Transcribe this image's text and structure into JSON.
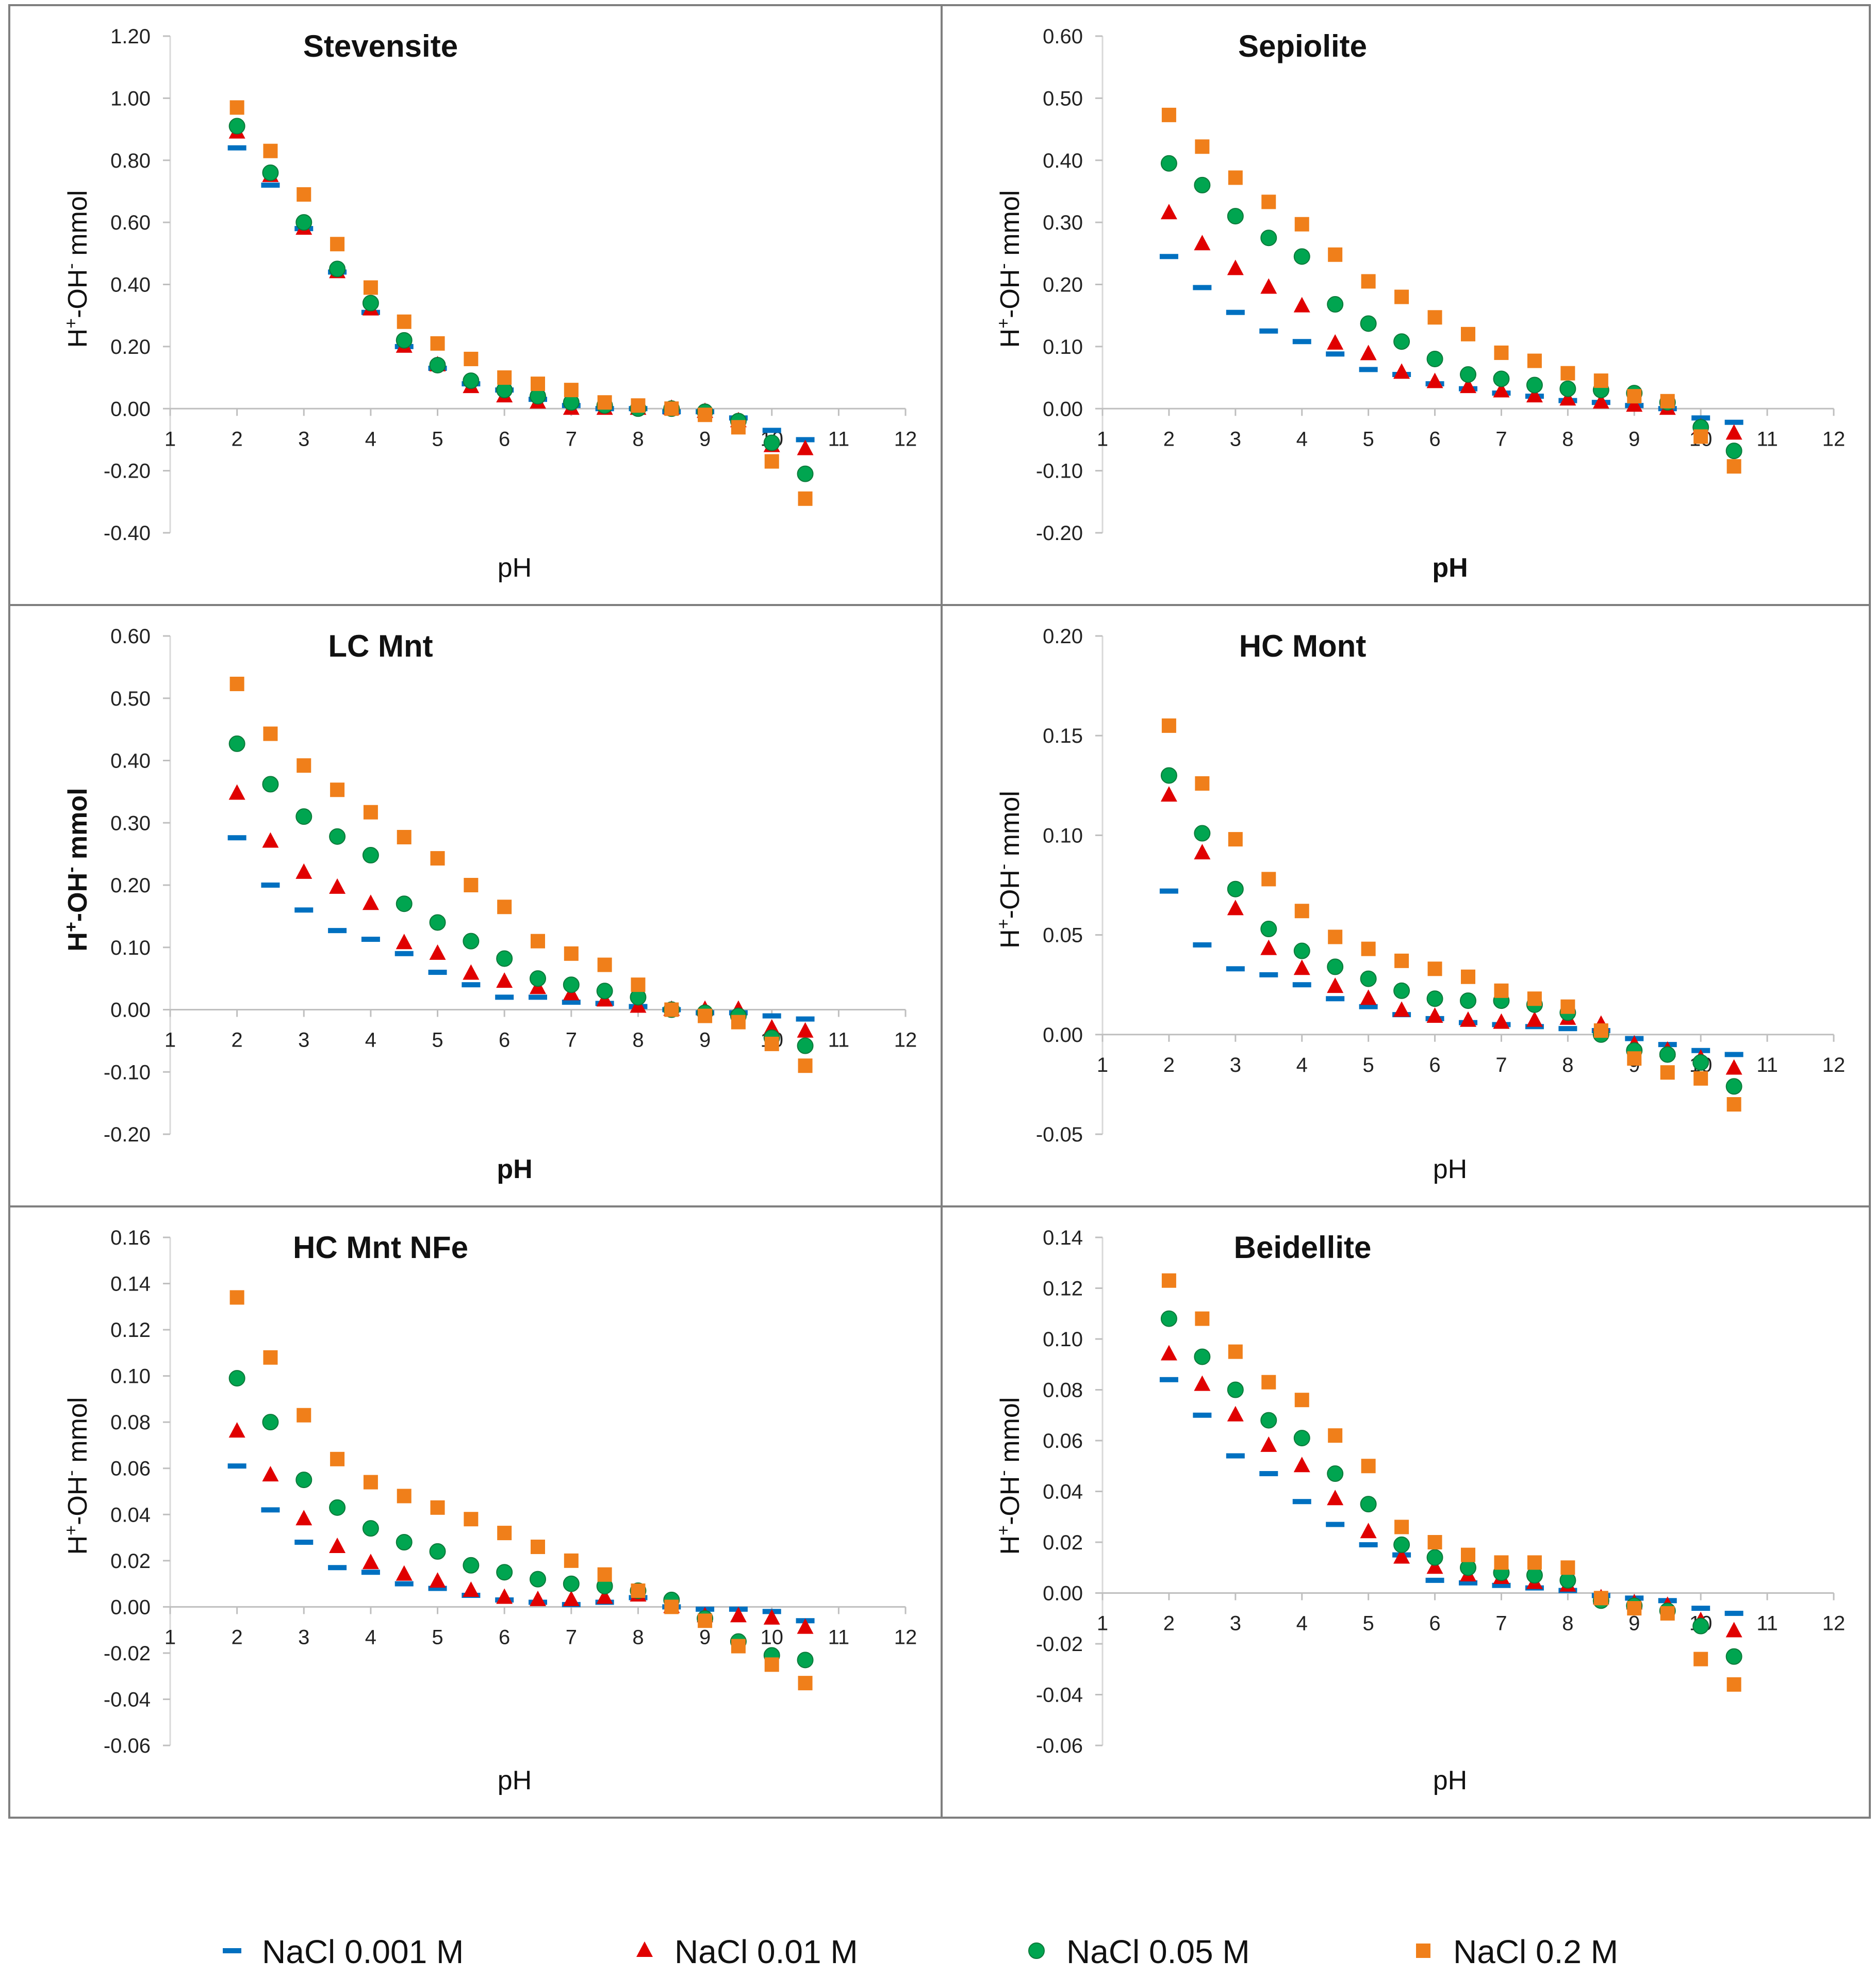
{
  "legend": [
    {
      "name": "NaCl 0.001 M",
      "marker": "dash",
      "color": "#0070C0"
    },
    {
      "name": "NaCl 0.01 M",
      "marker": "triangle",
      "color": "#E00000"
    },
    {
      "name": "NaCl 0.05 M",
      "marker": "circle",
      "color": "#00A550"
    },
    {
      "name": "NaCl 0.2 M",
      "marker": "square",
      "color": "#F07F1A"
    }
  ],
  "chart_data": [
    {
      "type": "scatter",
      "title": "Stevensite",
      "xlabel": "pH",
      "xlabel_bold": false,
      "ylabel_main": "H",
      "ylabel_sup1": "+",
      "ylabel_mid": "-OH",
      "ylabel_sup2": "-",
      "ylabel_tail": " mmol",
      "ylabel_bold": false,
      "xlim": [
        1,
        12
      ],
      "xticks": [
        "1",
        "2",
        "3",
        "4",
        "5",
        "6",
        "7",
        "8",
        "9",
        "10",
        "11",
        "12"
      ],
      "ylim": [
        -0.4,
        1.2
      ],
      "yticks": [
        "1.20",
        "1.00",
        "0.80",
        "0.60",
        "0.40",
        "0.20",
        "0.00",
        "-0.20",
        "-0.40"
      ],
      "x": [
        2,
        2.5,
        3,
        3.5,
        4,
        4.5,
        5,
        5.5,
        6,
        6.5,
        7,
        7.5,
        8,
        8.5,
        9,
        9.5,
        10,
        10.5
      ],
      "series": [
        {
          "name": "NaCl 0.001 M",
          "values": [
            0.84,
            0.72,
            0.58,
            0.44,
            0.31,
            0.2,
            0.13,
            0.08,
            0.06,
            0.03,
            0.01,
            0.0,
            0.0,
            -0.01,
            -0.01,
            -0.03,
            -0.07,
            -0.1
          ]
        },
        {
          "name": "NaCl 0.01 M",
          "values": [
            0.89,
            0.75,
            0.58,
            0.44,
            0.32,
            0.2,
            0.14,
            0.07,
            0.04,
            0.02,
            0.0,
            0.0,
            0.0,
            0.0,
            -0.01,
            -0.04,
            -0.12,
            -0.13
          ]
        },
        {
          "name": "NaCl 0.05 M",
          "values": [
            0.91,
            0.76,
            0.6,
            0.45,
            0.34,
            0.22,
            0.14,
            0.09,
            0.06,
            0.04,
            0.02,
            0.01,
            0.0,
            0.0,
            -0.01,
            -0.04,
            -0.11,
            -0.21
          ]
        },
        {
          "name": "NaCl 0.2 M",
          "values": [
            0.97,
            0.83,
            0.69,
            0.53,
            0.39,
            0.28,
            0.21,
            0.16,
            0.1,
            0.08,
            0.06,
            0.02,
            0.01,
            0.0,
            -0.02,
            -0.06,
            -0.17,
            -0.29
          ]
        }
      ]
    },
    {
      "type": "scatter",
      "title": "Sepiolite",
      "xlabel": "pH",
      "xlabel_bold": true,
      "ylabel_main": "H",
      "ylabel_sup1": "+",
      "ylabel_mid": "-OH",
      "ylabel_sup2": "-",
      "ylabel_tail": " mmol",
      "ylabel_bold": false,
      "xlim": [
        1,
        12
      ],
      "xticks": [
        "1",
        "2",
        "3",
        "4",
        "5",
        "6",
        "7",
        "8",
        "9",
        "10",
        "11",
        "12"
      ],
      "ylim": [
        -0.2,
        0.6
      ],
      "yticks": [
        "0.60",
        "0.50",
        "0.40",
        "0.30",
        "0.20",
        "0.10",
        "0.00",
        "-0.10",
        "-0.20"
      ],
      "x": [
        2,
        2.5,
        3,
        3.5,
        4,
        4.5,
        5,
        5.5,
        6,
        6.5,
        7,
        7.5,
        8,
        8.5,
        9,
        9.5,
        10,
        10.5
      ],
      "series": [
        {
          "name": "NaCl 0.001 M",
          "values": [
            0.245,
            0.195,
            0.155,
            0.125,
            0.108,
            0.088,
            0.063,
            0.055,
            0.04,
            0.032,
            0.025,
            0.02,
            0.013,
            0.01,
            0.005,
            0.0,
            -0.015,
            -0.022
          ]
        },
        {
          "name": "NaCl 0.01 M",
          "values": [
            0.315,
            0.265,
            0.225,
            0.195,
            0.165,
            0.105,
            0.088,
            0.058,
            0.043,
            0.035,
            0.028,
            0.02,
            0.015,
            0.01,
            0.005,
            0.0,
            -0.03,
            -0.04
          ]
        },
        {
          "name": "NaCl 0.05 M",
          "values": [
            0.395,
            0.36,
            0.31,
            0.275,
            0.245,
            0.168,
            0.137,
            0.108,
            0.08,
            0.055,
            0.048,
            0.038,
            0.032,
            0.03,
            0.025,
            0.01,
            -0.03,
            -0.068
          ]
        },
        {
          "name": "NaCl 0.2 M",
          "values": [
            0.473,
            0.422,
            0.372,
            0.333,
            0.297,
            0.248,
            0.205,
            0.18,
            0.147,
            0.12,
            0.09,
            0.077,
            0.057,
            0.045,
            0.02,
            0.012,
            -0.045,
            -0.093
          ]
        }
      ]
    },
    {
      "type": "scatter",
      "title": "LC Mnt",
      "xlabel": "pH",
      "xlabel_bold": true,
      "ylabel_main": "H",
      "ylabel_sup1": "+",
      "ylabel_mid": "-OH",
      "ylabel_sup2": "-",
      "ylabel_tail": "  mmol",
      "ylabel_bold": true,
      "xlim": [
        1,
        12
      ],
      "xticks": [
        "1",
        "2",
        "3",
        "4",
        "5",
        "6",
        "7",
        "8",
        "9",
        "10",
        "11",
        "12"
      ],
      "ylim": [
        -0.2,
        0.6
      ],
      "yticks": [
        "0.60",
        "0.50",
        "0.40",
        "0.30",
        "0.20",
        "0.10",
        "0.00",
        "-0.10",
        "-0.20"
      ],
      "x": [
        2,
        2.5,
        3,
        3.5,
        4,
        4.5,
        5,
        5.5,
        6,
        6.5,
        7,
        7.5,
        8,
        8.5,
        9,
        9.5,
        10,
        10.5
      ],
      "series": [
        {
          "name": "NaCl 0.001 M",
          "values": [
            0.276,
            0.2,
            0.16,
            0.127,
            0.113,
            0.09,
            0.06,
            0.04,
            0.02,
            0.02,
            0.012,
            0.01,
            0.005,
            0.0,
            -0.005,
            -0.005,
            -0.01,
            -0.015
          ]
        },
        {
          "name": "NaCl 0.01 M",
          "values": [
            0.347,
            0.27,
            0.22,
            0.196,
            0.17,
            0.107,
            0.09,
            0.058,
            0.045,
            0.035,
            0.025,
            0.015,
            0.005,
            0.0,
            0.0,
            0.0,
            -0.03,
            -0.035
          ]
        },
        {
          "name": "NaCl 0.05 M",
          "values": [
            0.427,
            0.362,
            0.31,
            0.278,
            0.248,
            0.17,
            0.14,
            0.11,
            0.082,
            0.05,
            0.04,
            0.03,
            0.02,
            0.0,
            -0.005,
            -0.01,
            -0.045,
            -0.058
          ]
        },
        {
          "name": "NaCl 0.2 M",
          "values": [
            0.523,
            0.443,
            0.392,
            0.353,
            0.317,
            0.277,
            0.243,
            0.2,
            0.165,
            0.11,
            0.09,
            0.072,
            0.04,
            0.0,
            -0.01,
            -0.02,
            -0.055,
            -0.09
          ]
        }
      ]
    },
    {
      "type": "scatter",
      "title": "HC Mont",
      "xlabel": "pH",
      "xlabel_bold": false,
      "ylabel_main": "H",
      "ylabel_sup1": "+",
      "ylabel_mid": "-OH",
      "ylabel_sup2": "-",
      "ylabel_tail": " mmol",
      "ylabel_bold": false,
      "xlim": [
        1,
        12
      ],
      "xticks": [
        "1",
        "2",
        "3",
        "4",
        "5",
        "6",
        "7",
        "8",
        "9",
        "10",
        "11",
        "12"
      ],
      "ylim": [
        -0.05,
        0.2
      ],
      "yticks": [
        "0.20",
        "0.15",
        "0.10",
        "0.05",
        "0.00",
        "-0.05"
      ],
      "x": [
        2,
        2.5,
        3,
        3.5,
        4,
        4.5,
        5,
        5.5,
        6,
        6.5,
        7,
        7.5,
        8,
        8.5,
        9,
        9.5,
        10,
        10.5
      ],
      "series": [
        {
          "name": "NaCl 0.001 M",
          "values": [
            0.072,
            0.045,
            0.033,
            0.03,
            0.025,
            0.018,
            0.014,
            0.01,
            0.008,
            0.006,
            0.005,
            0.004,
            0.003,
            0.002,
            -0.002,
            -0.005,
            -0.008,
            -0.01
          ]
        },
        {
          "name": "NaCl 0.01 M",
          "values": [
            0.12,
            0.091,
            0.063,
            0.043,
            0.033,
            0.024,
            0.018,
            0.012,
            0.009,
            0.007,
            0.006,
            0.007,
            0.008,
            0.005,
            -0.005,
            -0.008,
            -0.012,
            -0.017
          ]
        },
        {
          "name": "NaCl 0.05 M",
          "values": [
            0.13,
            0.101,
            0.073,
            0.053,
            0.042,
            0.034,
            0.028,
            0.022,
            0.018,
            0.017,
            0.017,
            0.015,
            0.011,
            0.0,
            -0.008,
            -0.01,
            -0.014,
            -0.026
          ]
        },
        {
          "name": "NaCl 0.2 M",
          "values": [
            0.155,
            0.126,
            0.098,
            0.078,
            0.062,
            0.049,
            0.043,
            0.037,
            0.033,
            0.029,
            0.022,
            0.018,
            0.014,
            0.002,
            -0.012,
            -0.019,
            -0.022,
            -0.035
          ]
        }
      ]
    },
    {
      "type": "scatter",
      "title": "HC Mnt NFe",
      "xlabel": "pH",
      "xlabel_bold": false,
      "ylabel_main": "H",
      "ylabel_sup1": "+",
      "ylabel_mid": "-OH",
      "ylabel_sup2": "-",
      "ylabel_tail": " mmol",
      "ylabel_bold": false,
      "xlim": [
        1,
        12
      ],
      "xticks": [
        "1",
        "2",
        "3",
        "4",
        "5",
        "6",
        "7",
        "8",
        "9",
        "10",
        "11",
        "12"
      ],
      "ylim": [
        -0.06,
        0.16
      ],
      "yticks": [
        "0.16",
        "0.14",
        "0.12",
        "0.10",
        "0.08",
        "0.06",
        "0.04",
        "0.02",
        "0.00",
        "-0.02",
        "-0.04",
        "-0.06"
      ],
      "x": [
        2,
        2.5,
        3,
        3.5,
        4,
        4.5,
        5,
        5.5,
        6,
        6.5,
        7,
        7.5,
        8,
        8.5,
        9,
        9.5,
        10,
        10.5
      ],
      "series": [
        {
          "name": "NaCl 0.001 M",
          "values": [
            0.061,
            0.042,
            0.028,
            0.017,
            0.015,
            0.01,
            0.008,
            0.005,
            0.003,
            0.002,
            0.001,
            0.002,
            0.004,
            0.0,
            -0.001,
            -0.001,
            -0.002,
            -0.006
          ]
        },
        {
          "name": "NaCl 0.01 M",
          "values": [
            0.076,
            0.057,
            0.038,
            0.026,
            0.019,
            0.014,
            0.011,
            0.007,
            0.004,
            0.003,
            0.003,
            0.004,
            0.005,
            0.0,
            -0.004,
            -0.004,
            -0.005,
            -0.009
          ]
        },
        {
          "name": "NaCl 0.05 M",
          "values": [
            0.099,
            0.08,
            0.055,
            0.043,
            0.034,
            0.028,
            0.024,
            0.018,
            0.015,
            0.012,
            0.01,
            0.009,
            0.007,
            0.003,
            -0.005,
            -0.015,
            -0.021,
            -0.023
          ]
        },
        {
          "name": "NaCl 0.2 M",
          "values": [
            0.134,
            0.108,
            0.083,
            0.064,
            0.054,
            0.048,
            0.043,
            0.038,
            0.032,
            0.026,
            0.02,
            0.014,
            0.007,
            0.0,
            -0.006,
            -0.017,
            -0.025,
            -0.033
          ]
        }
      ]
    },
    {
      "type": "scatter",
      "title": "Beidellite",
      "xlabel": "pH",
      "xlabel_bold": false,
      "ylabel_main": "H",
      "ylabel_sup1": "+",
      "ylabel_mid": "-OH",
      "ylabel_sup2": "-",
      "ylabel_tail": " mmol",
      "ylabel_bold": false,
      "xlim": [
        1,
        12
      ],
      "xticks": [
        "1",
        "2",
        "3",
        "4",
        "5",
        "6",
        "7",
        "8",
        "9",
        "10",
        "11",
        "12"
      ],
      "ylim": [
        -0.06,
        0.14
      ],
      "yticks": [
        "0.14",
        "0.12",
        "0.10",
        "0.08",
        "0.06",
        "0.04",
        "0.02",
        "0.00",
        "-0.02",
        "-0.04",
        "-0.06"
      ],
      "x": [
        2,
        2.5,
        3,
        3.5,
        4,
        4.5,
        5,
        5.5,
        6,
        6.5,
        7,
        7.5,
        8,
        8.5,
        9,
        9.5,
        10,
        10.5
      ],
      "series": [
        {
          "name": "NaCl 0.001 M",
          "values": [
            0.084,
            0.07,
            0.054,
            0.047,
            0.036,
            0.027,
            0.019,
            0.015,
            0.005,
            0.004,
            0.003,
            0.002,
            0.001,
            -0.001,
            -0.002,
            -0.003,
            -0.006,
            -0.008
          ]
        },
        {
          "name": "NaCl 0.01 M",
          "values": [
            0.094,
            0.082,
            0.07,
            0.058,
            0.05,
            0.037,
            0.024,
            0.014,
            0.01,
            0.007,
            0.006,
            0.004,
            0.003,
            -0.002,
            -0.004,
            -0.005,
            -0.011,
            -0.015
          ]
        },
        {
          "name": "NaCl 0.05 M",
          "values": [
            0.108,
            0.093,
            0.08,
            0.068,
            0.061,
            0.047,
            0.035,
            0.019,
            0.014,
            0.01,
            0.008,
            0.007,
            0.005,
            -0.003,
            -0.005,
            -0.007,
            -0.013,
            -0.025
          ]
        },
        {
          "name": "NaCl 0.2 M",
          "values": [
            0.123,
            0.108,
            0.095,
            0.083,
            0.076,
            0.062,
            0.05,
            0.026,
            0.02,
            0.015,
            0.012,
            0.012,
            0.01,
            -0.002,
            -0.006,
            -0.008,
            -0.026,
            -0.036
          ]
        }
      ]
    }
  ]
}
